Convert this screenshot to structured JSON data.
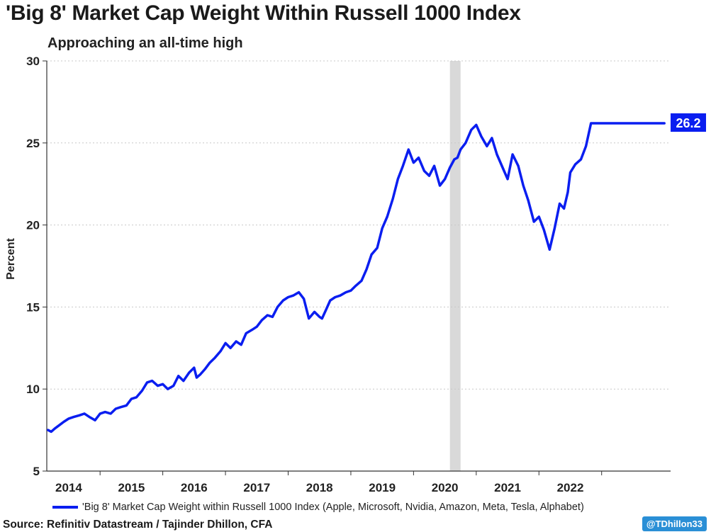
{
  "header": {
    "title": "'Big 8' Market Cap Weight Within Russell 1000 Index",
    "subtitle": "Approaching an all-time high"
  },
  "footer": {
    "source": "Source: Refinitiv Datastream / Tajinder Dhillon, CFA",
    "handle": "@TDhillon33"
  },
  "colors": {
    "series": "#0a1ef0",
    "recession_band": "#d9d9d9",
    "gridline": "#c8c8c8",
    "handle_bg": "#2a8fd6"
  },
  "chart_data": {
    "type": "line",
    "title": "'Big 8' Market Cap Weight Within Russell 1000 Index",
    "subtitle": "Approaching an all-time high",
    "xlabel": "",
    "ylabel": "Percent",
    "ylim": [
      5,
      30
    ],
    "yticks": [
      5,
      10,
      15,
      20,
      25,
      30
    ],
    "xlim": [
      2013.65,
      2023.6
    ],
    "xtick_labels": [
      "2014",
      "2015",
      "2016",
      "2017",
      "2018",
      "2019",
      "2020",
      "2021",
      "2022"
    ],
    "grid": "horizontal dotted",
    "legend_position": "bottom",
    "shaded_band": {
      "x0": 2020.08,
      "x1": 2020.25
    },
    "end_label": "26.2",
    "series": [
      {
        "name": "'Big 8' Market Cap Weight within Russell 1000 Index (Apple, Microsoft, Nvidia, Amazon, Meta, Tesla, Alphabet)",
        "x": [
          2013.67,
          2013.72,
          2013.78,
          2013.85,
          2013.92,
          2014.0,
          2014.08,
          2014.17,
          2014.25,
          2014.33,
          2014.42,
          2014.5,
          2014.58,
          2014.67,
          2014.75,
          2014.83,
          2014.92,
          2015.0,
          2015.08,
          2015.17,
          2015.25,
          2015.33,
          2015.42,
          2015.5,
          2015.58,
          2015.67,
          2015.75,
          2015.83,
          2015.92,
          2016.0,
          2016.04,
          2016.1,
          2016.17,
          2016.25,
          2016.33,
          2016.42,
          2016.5,
          2016.58,
          2016.67,
          2016.75,
          2016.83,
          2016.92,
          2017.0,
          2017.08,
          2017.17,
          2017.25,
          2017.33,
          2017.42,
          2017.5,
          2017.58,
          2017.67,
          2017.75,
          2017.83,
          2017.92,
          2018.0,
          2018.04,
          2018.1,
          2018.17,
          2018.25,
          2018.33,
          2018.42,
          2018.5,
          2018.58,
          2018.67,
          2018.75,
          2018.83,
          2018.92,
          2019.0,
          2019.08,
          2019.17,
          2019.25,
          2019.33,
          2019.42,
          2019.5,
          2019.58,
          2019.67,
          2019.75,
          2019.83,
          2019.92,
          2020.0,
          2020.08,
          2020.15,
          2020.2,
          2020.25,
          2020.33,
          2020.42,
          2020.5,
          2020.58,
          2020.67,
          2020.75,
          2020.83,
          2020.92,
          2021.0,
          2021.08,
          2021.17,
          2021.25,
          2021.33,
          2021.42,
          2021.5,
          2021.58,
          2021.67,
          2021.75,
          2021.83,
          2021.9,
          2021.96,
          2022.0,
          2022.08,
          2022.17,
          2022.25,
          2022.33,
          2022.42,
          2022.5,
          2022.58,
          2022.67,
          2022.75,
          2022.83,
          2022.9,
          2022.96,
          2023.0,
          2023.08,
          2023.17,
          2023.25,
          2023.33,
          2023.42,
          2023.5
        ],
        "y": [
          7.5,
          7.4,
          7.6,
          7.8,
          8.0,
          8.2,
          8.3,
          8.4,
          8.5,
          8.3,
          8.1,
          8.5,
          8.6,
          8.5,
          8.8,
          8.9,
          9.0,
          9.4,
          9.5,
          9.9,
          10.4,
          10.5,
          10.2,
          10.3,
          10.0,
          10.2,
          10.8,
          10.5,
          11.0,
          11.3,
          10.7,
          10.9,
          11.2,
          11.6,
          11.9,
          12.3,
          12.8,
          12.5,
          12.9,
          12.7,
          13.4,
          13.6,
          13.8,
          14.2,
          14.5,
          14.4,
          15.0,
          15.4,
          15.6,
          15.7,
          15.9,
          15.5,
          14.3,
          14.7,
          14.4,
          14.3,
          14.8,
          15.4,
          15.6,
          15.7,
          15.9,
          16.0,
          16.3,
          16.6,
          17.3,
          18.2,
          18.6,
          19.8,
          20.5,
          21.6,
          22.8,
          23.6,
          24.6,
          23.8,
          24.1,
          23.3,
          23.0,
          23.6,
          22.4,
          22.8,
          23.5,
          24.0,
          24.1,
          24.6,
          25.0,
          25.8,
          26.1,
          25.4,
          24.8,
          25.3,
          24.3,
          23.5,
          22.8,
          24.3,
          23.6,
          22.4,
          21.5,
          20.2,
          20.5,
          19.7,
          18.5,
          19.8,
          21.3,
          21.0,
          22.0,
          23.2,
          23.7,
          24.0,
          24.8,
          26.2,
          26.2,
          26.2,
          26.2,
          26.2,
          26.2,
          26.2,
          26.2,
          26.2,
          26.2,
          26.2,
          26.2,
          26.2,
          26.2,
          26.2,
          26.2
        ],
        "note_ignore": ""
      }
    ]
  }
}
